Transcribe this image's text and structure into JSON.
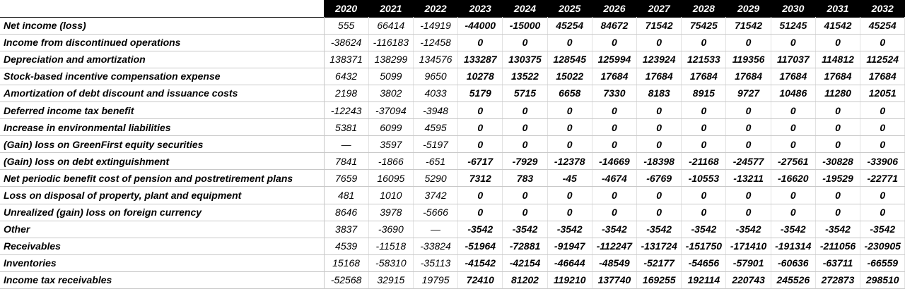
{
  "years": [
    "2020",
    "2021",
    "2022",
    "2023",
    "2024",
    "2025",
    "2026",
    "2027",
    "2028",
    "2029",
    "2030",
    "2031",
    "2032"
  ],
  "rows": [
    {
      "label": "Net income (loss)",
      "values": [
        "555",
        "66414",
        "-14919",
        "-44000",
        "-15000",
        "45254",
        "84672",
        "71542",
        "75425",
        "71542",
        "51245",
        "41542",
        "45254"
      ]
    },
    {
      "label": "Income from discontinued operations",
      "values": [
        "-38624",
        "-116183",
        "-12458",
        "0",
        "0",
        "0",
        "0",
        "0",
        "0",
        "0",
        "0",
        "0",
        "0"
      ]
    },
    {
      "label": "Depreciation and amortization",
      "values": [
        "138371",
        "138299",
        "134576",
        "133287",
        "130375",
        "128545",
        "125994",
        "123924",
        "121533",
        "119356",
        "117037",
        "114812",
        "112524"
      ]
    },
    {
      "label": "Stock-based incentive compensation expense",
      "values": [
        "6432",
        "5099",
        "9650",
        "10278",
        "13522",
        "15022",
        "17684",
        "17684",
        "17684",
        "17684",
        "17684",
        "17684",
        "17684"
      ]
    },
    {
      "label": "Amortization of debt discount and issuance costs",
      "values": [
        "2198",
        "3802",
        "4033",
        "5179",
        "5715",
        "6658",
        "7330",
        "8183",
        "8915",
        "9727",
        "10486",
        "11280",
        "12051"
      ]
    },
    {
      "label": "Deferred income tax benefit",
      "values": [
        "-12243",
        "-37094",
        "-3948",
        "0",
        "0",
        "0",
        "0",
        "0",
        "0",
        "0",
        "0",
        "0",
        "0"
      ]
    },
    {
      "label": "Increase in environmental liabilities",
      "values": [
        "5381",
        "6099",
        "4595",
        "0",
        "0",
        "0",
        "0",
        "0",
        "0",
        "0",
        "0",
        "0",
        "0"
      ]
    },
    {
      "label": "(Gain) loss on GreenFirst equity securities",
      "values": [
        "—",
        "3597",
        "-5197",
        "0",
        "0",
        "0",
        "0",
        "0",
        "0",
        "0",
        "0",
        "0",
        "0"
      ]
    },
    {
      "label": "(Gain) loss on debt extinguishment",
      "values": [
        "7841",
        "-1866",
        "-651",
        "-6717",
        "-7929",
        "-12378",
        "-14669",
        "-18398",
        "-21168",
        "-24577",
        "-27561",
        "-30828",
        "-33906"
      ]
    },
    {
      "label": "Net periodic benefit cost of pension and postretirement plans",
      "values": [
        "7659",
        "16095",
        "5290",
        "7312",
        "783",
        "-45",
        "-4674",
        "-6769",
        "-10553",
        "-13211",
        "-16620",
        "-19529",
        "-22771"
      ]
    },
    {
      "label": "Loss on disposal of property, plant and equipment",
      "values": [
        "481",
        "1010",
        "3742",
        "0",
        "0",
        "0",
        "0",
        "0",
        "0",
        "0",
        "0",
        "0",
        "0"
      ]
    },
    {
      "label": "Unrealized (gain) loss on foreign currency",
      "values": [
        "8646",
        "3978",
        "-5666",
        "0",
        "0",
        "0",
        "0",
        "0",
        "0",
        "0",
        "0",
        "0",
        "0"
      ]
    },
    {
      "label": "Other",
      "values": [
        "3837",
        "-3690",
        "—",
        "-3542",
        "-3542",
        "-3542",
        "-3542",
        "-3542",
        "-3542",
        "-3542",
        "-3542",
        "-3542",
        "-3542"
      ]
    },
    {
      "label": "Receivables",
      "values": [
        "4539",
        "-11518",
        "-33824",
        "-51964",
        "-72881",
        "-91947",
        "-112247",
        "-131724",
        "-151750",
        "-171410",
        "-191314",
        "-211056",
        "-230905"
      ]
    },
    {
      "label": "Inventories",
      "values": [
        "15168",
        "-58310",
        "-35113",
        "-41542",
        "-42154",
        "-46644",
        "-48549",
        "-52177",
        "-54656",
        "-57901",
        "-60636",
        "-63711",
        "-66559"
      ]
    },
    {
      "label": "Income tax receivables",
      "values": [
        "-52568",
        "32915",
        "19795",
        "72410",
        "81202",
        "119210",
        "137740",
        "169255",
        "192114",
        "220743",
        "245526",
        "272873",
        "298510"
      ]
    }
  ]
}
